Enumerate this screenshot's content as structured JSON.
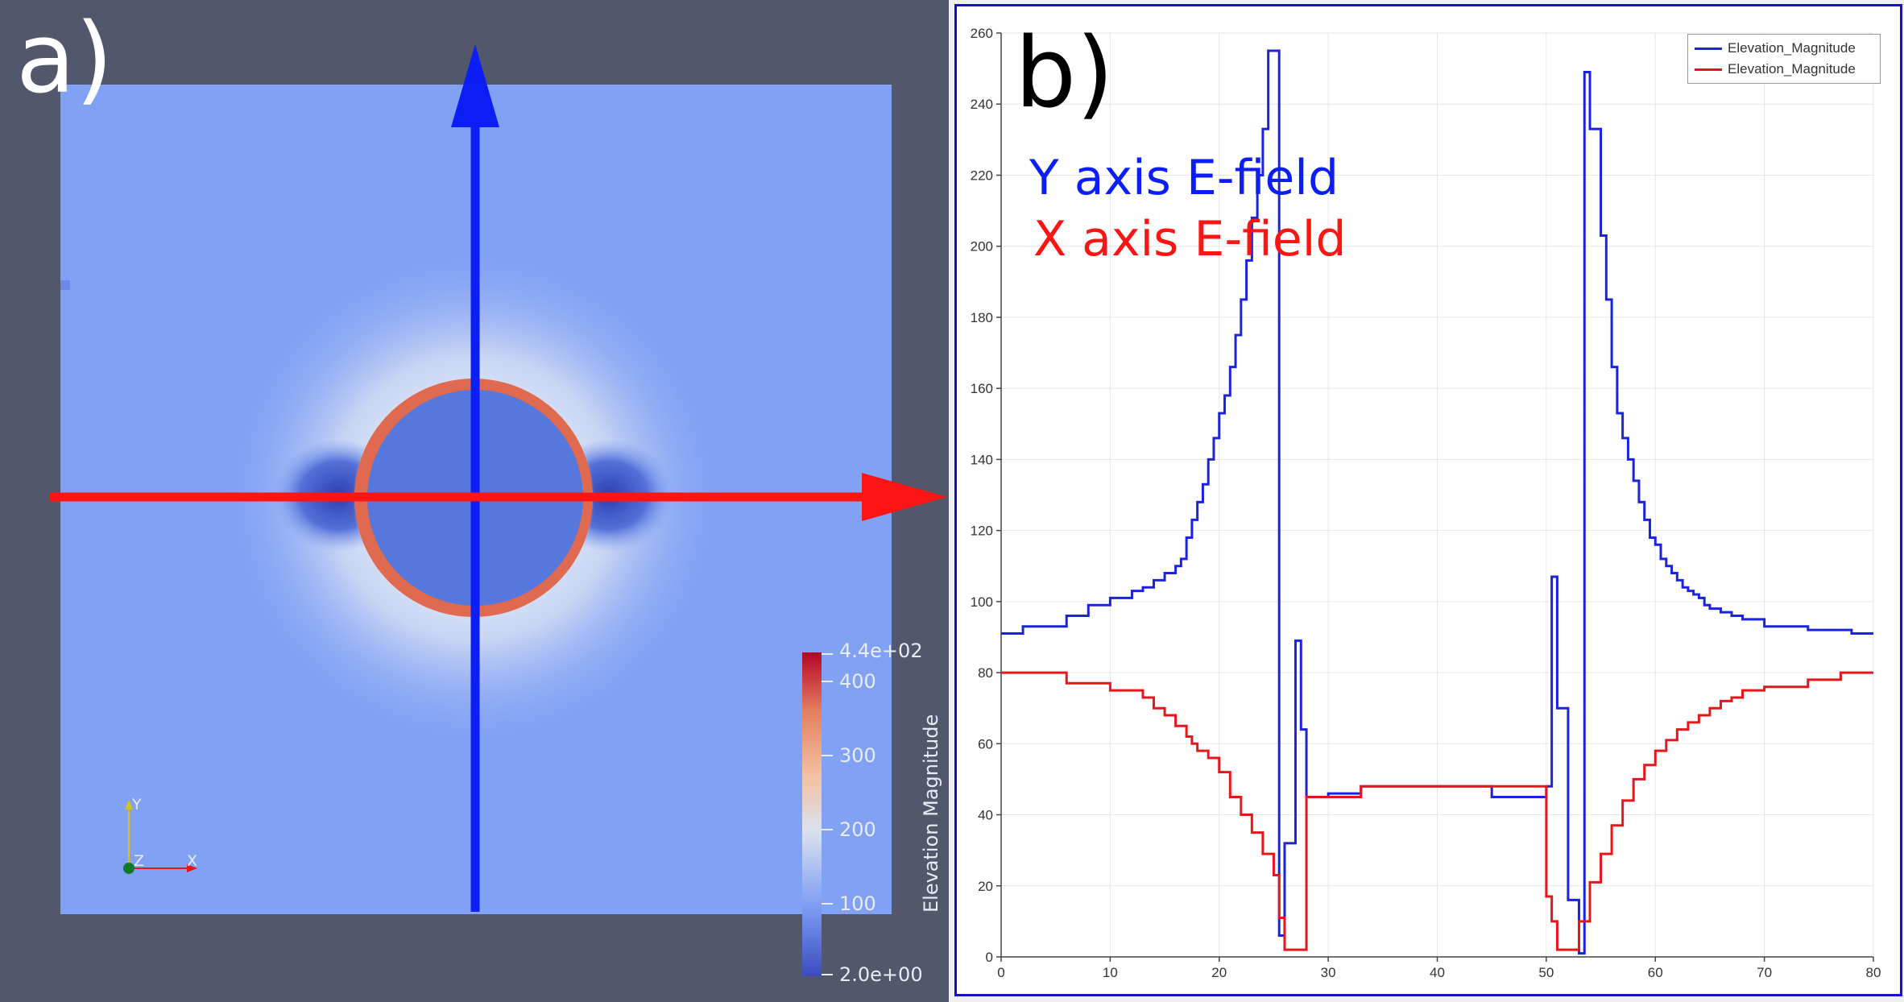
{
  "left_panel": {
    "panel_label": "a)",
    "colorbar": {
      "title": "Elevation Magnitude",
      "max_label": "4.4e+02",
      "min_label": "2.0e+00",
      "tick_labels": [
        "400",
        "300",
        "200",
        "100"
      ],
      "range": [
        2,
        440
      ],
      "colors": [
        "#3b4cc0",
        "#7f9ef4",
        "#dbe2ee",
        "#f4c0a2",
        "#e57e5f",
        "#b40426"
      ]
    },
    "orientation_axes": {
      "y": "Y",
      "z": "Z",
      "x": "X"
    },
    "arrows": {
      "vertical_color": "#0a1ef5",
      "horizontal_color": "#ff1414"
    }
  },
  "right_panel": {
    "panel_label": "b)",
    "y_label_text": "Y axis E-field",
    "x_label_text": "X axis E-field",
    "y_label_color": "#0a1ef5",
    "x_label_color": "#ff1414",
    "legend": [
      {
        "label": "Elevation_Magnitude",
        "color": "#1a24e0"
      },
      {
        "label": "Elevation_Magnitude",
        "color": "#e8161b"
      }
    ]
  },
  "chart_data": {
    "type": "line",
    "step": true,
    "xlim": [
      0,
      80
    ],
    "ylim": [
      0,
      260
    ],
    "x_ticks": [
      0,
      10,
      20,
      30,
      40,
      50,
      60,
      70,
      80
    ],
    "y_ticks": [
      0,
      20,
      40,
      60,
      80,
      100,
      120,
      140,
      160,
      180,
      200,
      220,
      240,
      260
    ],
    "grid": true,
    "legend_position": "top-right",
    "series": [
      {
        "name": "Elevation_Magnitude",
        "color": "#1a24e0",
        "x": [
          0,
          2,
          6,
          8,
          10,
          12,
          13,
          14,
          15,
          16,
          16.5,
          17,
          17.5,
          18,
          18.5,
          19,
          19.5,
          20,
          20.5,
          21,
          21.5,
          22,
          22.5,
          23,
          23.5,
          24,
          24.5,
          25,
          25.5,
          26,
          27,
          27.5,
          28,
          29,
          30,
          33,
          36,
          40,
          45,
          47.5,
          50,
          50.5,
          51,
          52,
          53,
          53.5,
          54,
          55,
          55.5,
          56,
          56.5,
          57,
          57.5,
          58,
          58.5,
          59,
          59.5,
          60,
          60.5,
          61,
          61.5,
          62,
          62.5,
          63,
          63.5,
          64,
          64.5,
          65,
          66,
          67,
          68,
          70,
          72,
          74,
          78,
          80
        ],
        "y": [
          91,
          93,
          96,
          99,
          101,
          103,
          104,
          106,
          108,
          110,
          112,
          118,
          123,
          128,
          133,
          140,
          146,
          153,
          158,
          166,
          175,
          185,
          196,
          208,
          220,
          233,
          255,
          255,
          6,
          32,
          89,
          64,
          45,
          45,
          46,
          48,
          48,
          48,
          45,
          45,
          48,
          107,
          70,
          16,
          1,
          249,
          233,
          203,
          185,
          166,
          153,
          146,
          140,
          134,
          128,
          123,
          118,
          116,
          112,
          110,
          108,
          106,
          104,
          103,
          102,
          101,
          99,
          98,
          97,
          96,
          95,
          93,
          93,
          92,
          91,
          91
        ]
      },
      {
        "name": "Elevation_Magnitude",
        "color": "#e8161b",
        "x": [
          0,
          6,
          10,
          13,
          14,
          15,
          16,
          17,
          17.5,
          18,
          19,
          20,
          21,
          22,
          23,
          24,
          25,
          25.5,
          26,
          27,
          28,
          30,
          33,
          36,
          40,
          47,
          50,
          50.5,
          51,
          52,
          53,
          54,
          55,
          56,
          57,
          58,
          59,
          60,
          61,
          62,
          63,
          64,
          65,
          66,
          67,
          68,
          70,
          74,
          77,
          80
        ],
        "y": [
          80,
          77,
          75,
          73,
          70,
          68,
          65,
          62,
          60,
          58,
          56,
          52,
          45,
          40,
          35,
          29,
          23,
          11,
          2,
          2,
          45,
          45,
          48,
          48,
          48,
          48,
          17,
          10,
          2,
          2,
          10,
          21,
          29,
          37,
          44,
          50,
          54,
          58,
          61,
          64,
          66,
          68,
          70,
          72,
          73,
          75,
          76,
          78,
          80,
          80
        ]
      }
    ]
  }
}
